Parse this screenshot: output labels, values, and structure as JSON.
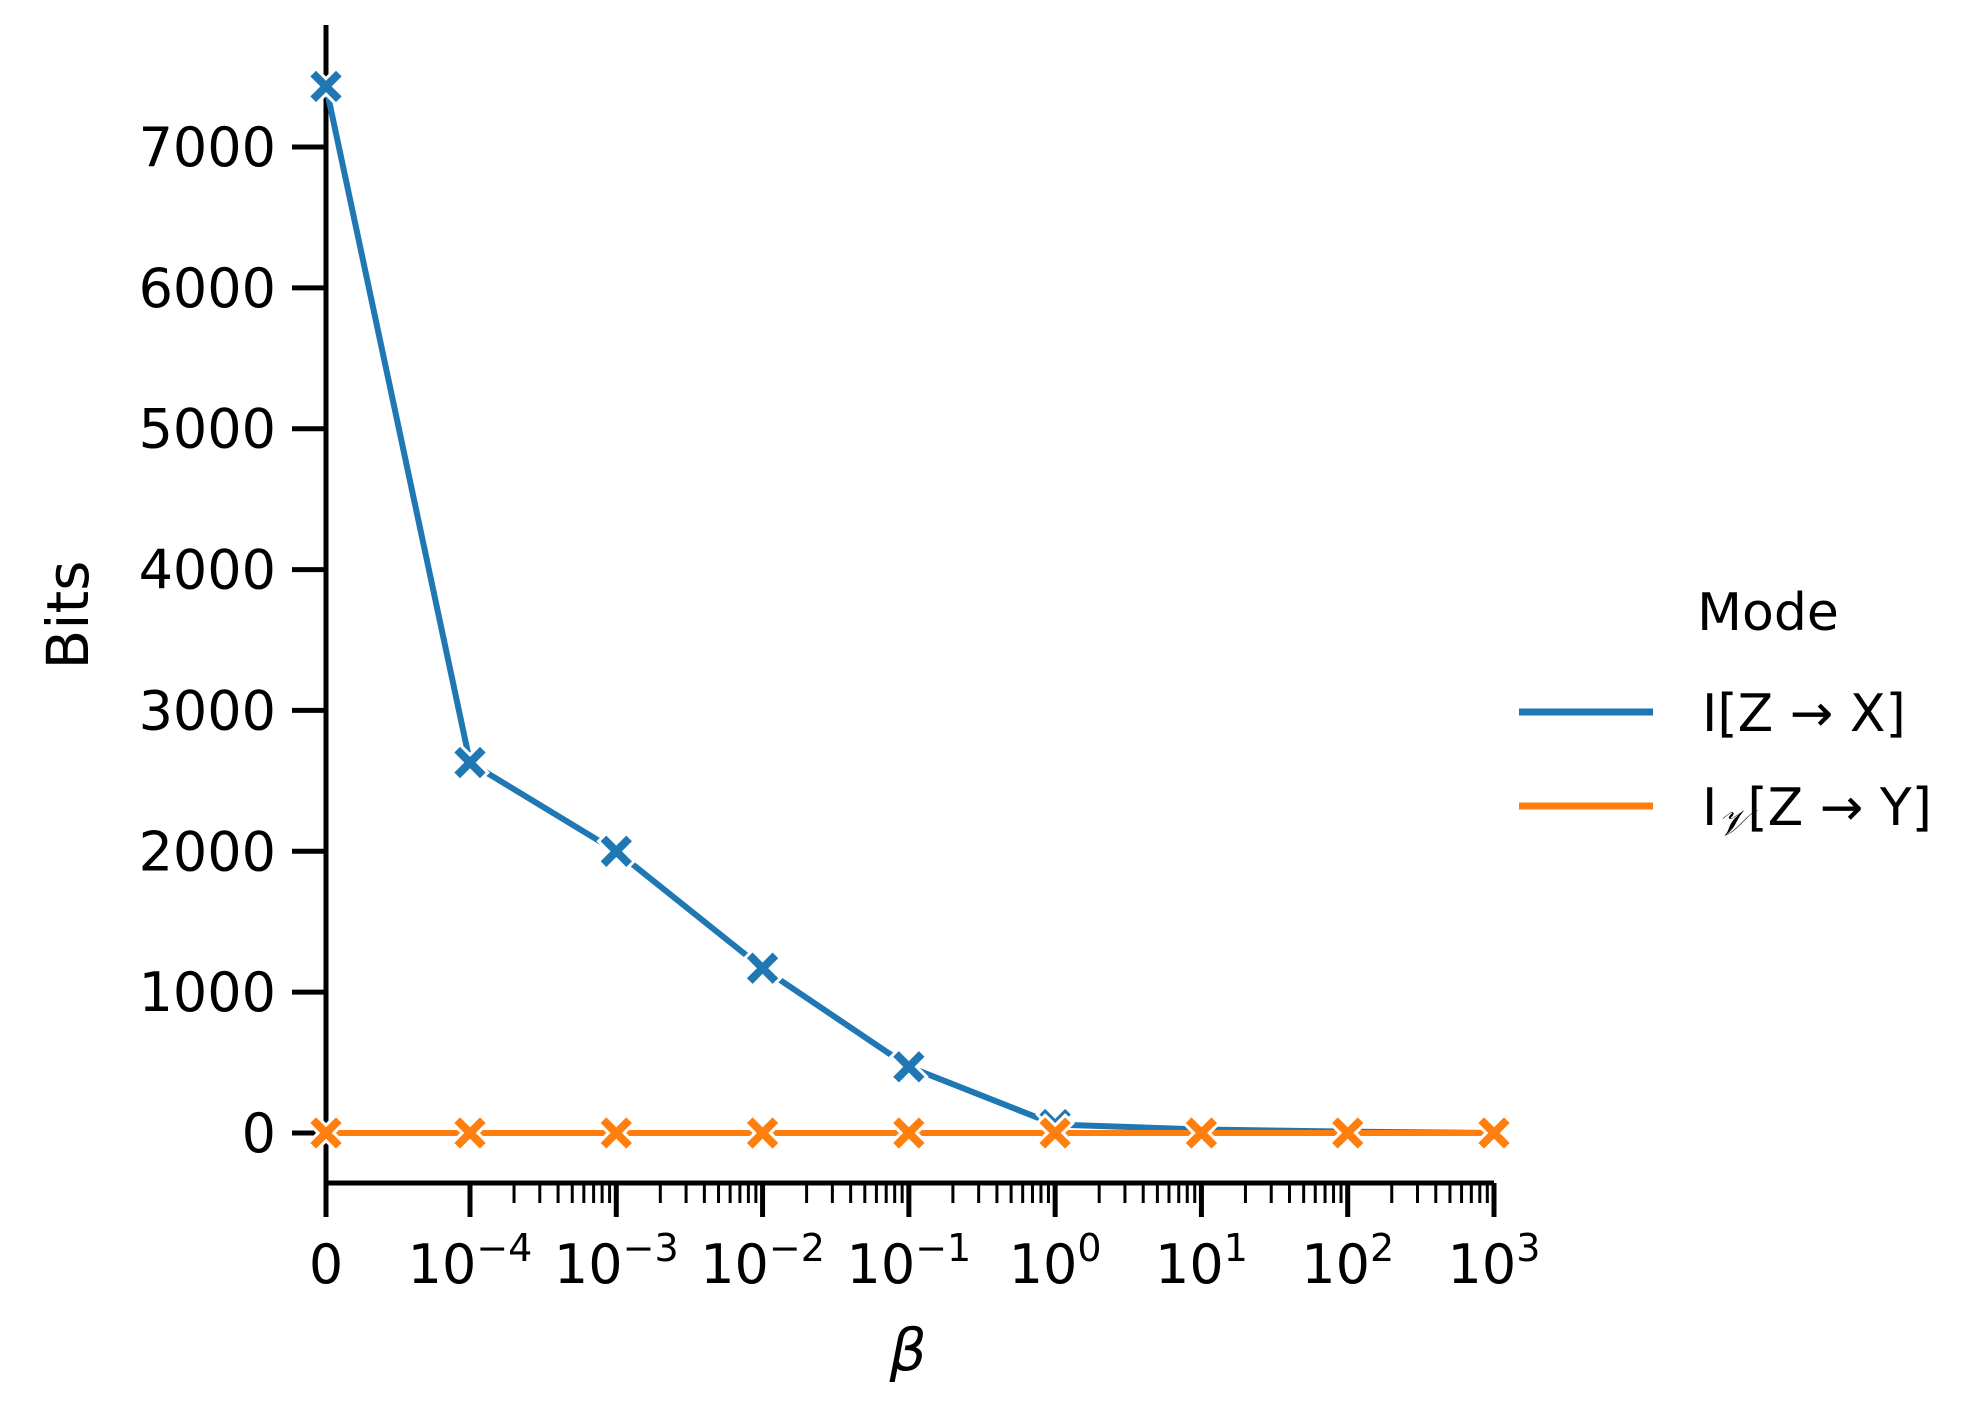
{
  "chart_data": {
    "type": "line",
    "xlabel": "β",
    "ylabel": "Bits",
    "x_scale": "symlog",
    "x": [
      0,
      0.0001,
      0.001,
      0.01,
      0.1,
      1,
      10,
      100,
      1000
    ],
    "x_tick_labels": [
      {
        "base": "0",
        "exp": ""
      },
      {
        "base": "10",
        "exp": "−4"
      },
      {
        "base": "10",
        "exp": "−3"
      },
      {
        "base": "10",
        "exp": "−2"
      },
      {
        "base": "10",
        "exp": "−1"
      },
      {
        "base": "10",
        "exp": "0"
      },
      {
        "base": "10",
        "exp": "1"
      },
      {
        "base": "10",
        "exp": "2"
      },
      {
        "base": "10",
        "exp": "3"
      }
    ],
    "yticks": [
      0,
      1000,
      2000,
      3000,
      4000,
      5000,
      6000,
      7000
    ],
    "ylim": [
      -370,
      7840
    ],
    "grid": false,
    "legend": {
      "title": "Mode",
      "position": "right",
      "entries": [
        {
          "main": "I",
          "sub": "",
          "rest": "[Z → X]"
        },
        {
          "main": "I",
          "sub": "𝒱",
          "rest": "[Z → Y]"
        }
      ]
    },
    "series": [
      {
        "color": "#1f77b4",
        "values": [
          7430,
          2630,
          2000,
          1170,
          470,
          60,
          25,
          10,
          0
        ]
      },
      {
        "color": "#ff7f0e",
        "values": [
          0,
          0,
          0,
          0,
          0,
          0,
          0,
          0,
          0
        ]
      }
    ]
  }
}
